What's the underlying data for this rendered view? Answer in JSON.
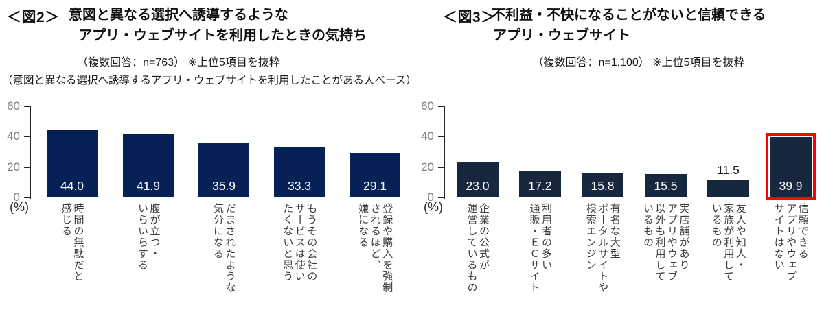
{
  "chart_data": [
    {
      "type": "bar",
      "fig_tag": "＜図2＞",
      "title_lines": [
        "意図と異なる選択へ誘導するような",
        "アプリ・ウェブサイトを利用したときの気持ち"
      ],
      "subtitle": "（複数回答：n=763） ※上位5項目を抜粋",
      "note": "（意図と異なる選択へ誘導するアプリ・ウェブサイトを利用したことがある人ベース）",
      "unit_label": "(%)",
      "ylim": [
        0,
        60
      ],
      "yticks": [
        0,
        20,
        40,
        60
      ],
      "grid": false,
      "legend": null,
      "bar_color": "#062155",
      "value_text_color": "#ffffff",
      "categories": [
        "時間の無駄だと\n感じる",
        "腹が立つ・\nいらいらする",
        "だまされたような\n気分になる",
        "もうその会社の\nサービスは使い\nたくないと思う",
        "登録や購入を強制\nされるほど、\n嫌になる"
      ],
      "values": [
        44.0,
        41.9,
        35.9,
        33.3,
        29.1
      ],
      "value_labels": [
        "44.0",
        "41.9",
        "35.9",
        "33.3",
        "29.1"
      ],
      "outside_value_label_indices": [],
      "highlight_indices": [],
      "highlight_color": "#ff0000"
    },
    {
      "type": "bar",
      "fig_tag": "＜図3＞",
      "title_lines": [
        "不利益・不快になることがないと信頼できる",
        "アプリ・ウェブサイト"
      ],
      "subtitle": "（複数回答：n=1,100） ※上位5項目を抜粋",
      "note": "",
      "unit_label": "(%)",
      "ylim": [
        0,
        60
      ],
      "yticks": [
        0,
        20,
        40,
        60
      ],
      "grid": false,
      "legend": null,
      "bar_color": "#16273e",
      "value_text_color": "#ffffff",
      "categories": [
        "企業の公式が\n運営しているもの",
        "利用者の多い\n通販・ＥＣサイト",
        "有名な大型\nポータルサイトや\n検索エンジン",
        "実店舗があり\nアプリやウェブ\n以外も利用して\nいるもの",
        "友人や知人・\n家族が利用して\nいるもの",
        "信頼できる\nアプリやウェブ\nサイトはない"
      ],
      "values": [
        23.0,
        17.2,
        15.8,
        15.5,
        11.5,
        39.9
      ],
      "value_labels": [
        "23.0",
        "17.2",
        "15.8",
        "15.5",
        "11.5",
        "39.9"
      ],
      "outside_value_label_indices": [
        4
      ],
      "highlight_indices": [
        5
      ],
      "highlight_color": "#ff0000"
    }
  ]
}
